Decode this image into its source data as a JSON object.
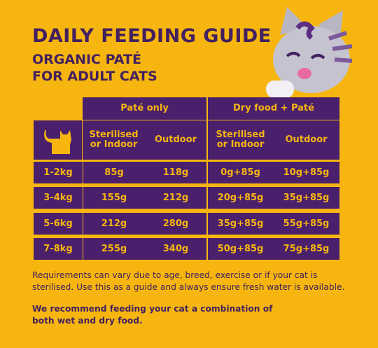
{
  "header": {
    "title": "DAILY FEEDING GUIDE",
    "subtitle": [
      "ORGANIC PATÉ",
      "FOR ADULT CATS"
    ]
  },
  "table": {
    "groups": [
      "Paté only",
      "Dry food + Paté"
    ],
    "columns": [
      "Sterilised or Indoor",
      "Outdoor",
      "Sterilised or Indoor",
      "Outdoor"
    ],
    "rows": [
      [
        "1-2kg",
        "85g",
        "118g",
        "0g+85g",
        "10g+85g"
      ],
      [
        "3-4kg",
        "155g",
        "212g",
        "20g+85g",
        "35g+85g"
      ],
      [
        "5-6kg",
        "212g",
        "280g",
        "35g+85g",
        "55g+85g"
      ],
      [
        "7-8kg",
        "255g",
        "340g",
        "50g+85g",
        "75g+85g"
      ]
    ]
  },
  "notes": [
    "Requirements can vary due to age, breed, exercise or if your cat is sterilised. Use this as a guide and always ensure fresh water is available.",
    "We recommend feeding your cat a combination of both wet and dry food."
  ]
}
